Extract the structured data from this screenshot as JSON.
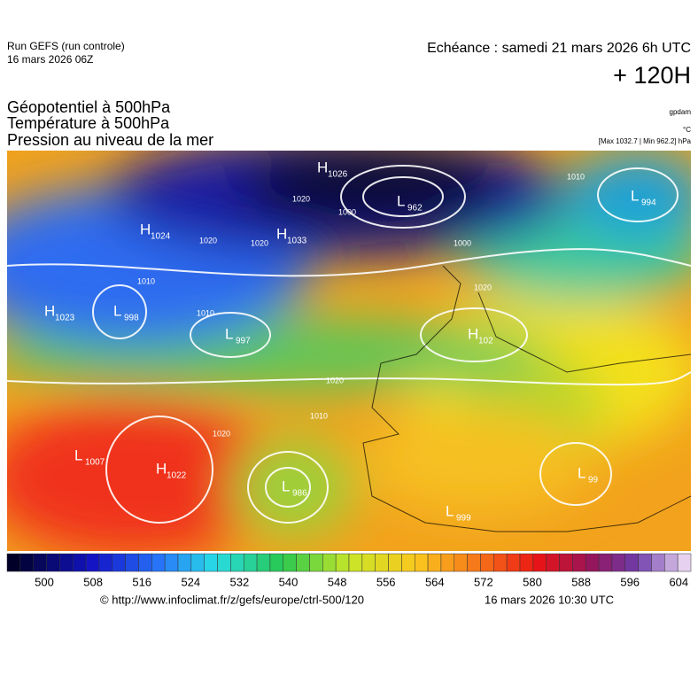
{
  "header": {
    "run": "Run GEFS (run controle)",
    "run_date": "16 mars 2026 06Z",
    "echeance": "Echéance : samedi 21 mars 2026 6h UTC",
    "lead": "+ 120H",
    "titles": [
      "Géopotentiel à 500hPa",
      "Température à 500hPa",
      "Pression au niveau de la mer"
    ],
    "credit": "gpdam",
    "unit": "°C",
    "maxmin": "[Max 1032.7 | Min 962.2] hPa"
  },
  "pressure_centers": [
    {
      "type": "H",
      "value": "1026"
    },
    {
      "type": "L",
      "value": "962"
    },
    {
      "type": "H",
      "value": "1024"
    },
    {
      "type": "H",
      "value": "1033"
    },
    {
      "type": "L",
      "value": "994"
    },
    {
      "type": "H",
      "value": "1023"
    },
    {
      "type": "L",
      "value": "998"
    },
    {
      "type": "L",
      "value": "997"
    },
    {
      "type": "H",
      "value": "102"
    },
    {
      "type": "L",
      "value": "1007"
    },
    {
      "type": "H",
      "value": "1022"
    },
    {
      "type": "L",
      "value": "986"
    },
    {
      "type": "L",
      "value": "99"
    },
    {
      "type": "L",
      "value": "999"
    }
  ],
  "isobar_labels": [
    "1020",
    "1010",
    "1020",
    "1000",
    "1010",
    "1020",
    "1010",
    "1020",
    "1020",
    "1010",
    "1000",
    "1020"
  ],
  "colorbar": {
    "labels": [
      "500",
      "508",
      "516",
      "524",
      "532",
      "540",
      "548",
      "556",
      "564",
      "572",
      "580",
      "588",
      "596",
      "604"
    ]
  },
  "footer": {
    "url": "© http://www.infoclimat.fr/z/gefs/europe/ctrl-500/120",
    "time": "16 mars 2026 10:30 UTC"
  }
}
